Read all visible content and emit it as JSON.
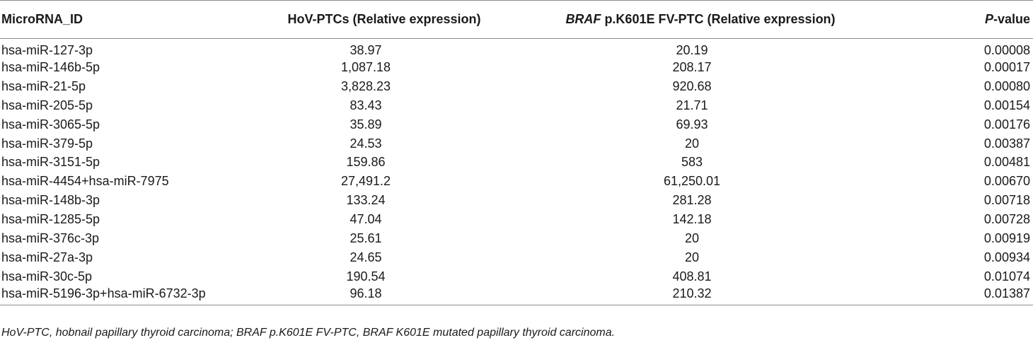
{
  "table": {
    "headers": {
      "id": "MicroRNA_ID",
      "hov": "HoV-PTCs (Relative expression)",
      "braf_gene": "BRAF",
      "braf_rest": " p.K601E FV-PTC (Relative expression)",
      "p_italic": "P",
      "p_rest": "-value"
    },
    "rows": [
      {
        "id": "hsa-miR-127-3p",
        "hov": "38.97",
        "braf": "20.19",
        "p": "0.00008"
      },
      {
        "id": "hsa-miR-146b-5p",
        "hov": "1,087.18",
        "braf": "208.17",
        "p": "0.00017"
      },
      {
        "id": "hsa-miR-21-5p",
        "hov": "3,828.23",
        "braf": "920.68",
        "p": "0.00080"
      },
      {
        "id": "hsa-miR-205-5p",
        "hov": "83.43",
        "braf": "21.71",
        "p": "0.00154"
      },
      {
        "id": "hsa-miR-3065-5p",
        "hov": "35.89",
        "braf": "69.93",
        "p": "0.00176"
      },
      {
        "id": "hsa-miR-379-5p",
        "hov": "24.53",
        "braf": "20",
        "p": "0.00387"
      },
      {
        "id": "hsa-miR-3151-5p",
        "hov": "159.86",
        "braf": "583",
        "p": "0.00481"
      },
      {
        "id": "hsa-miR-4454+hsa-miR-7975",
        "hov": "27,491.2",
        "braf": "61,250.01",
        "p": "0.00670"
      },
      {
        "id": "hsa-miR-148b-3p",
        "hov": "133.24",
        "braf": "281.28",
        "p": "0.00718"
      },
      {
        "id": "hsa-miR-1285-5p",
        "hov": "47.04",
        "braf": "142.18",
        "p": "0.00728"
      },
      {
        "id": "hsa-miR-376c-3p",
        "hov": "25.61",
        "braf": "20",
        "p": "0.00919"
      },
      {
        "id": "hsa-miR-27a-3p",
        "hov": "24.65",
        "braf": "20",
        "p": "0.00934"
      },
      {
        "id": "hsa-miR-30c-5p",
        "hov": "190.54",
        "braf": "408.81",
        "p": "0.01074"
      },
      {
        "id": "hsa-miR-5196-3p+hsa-miR-6732-3p",
        "hov": "96.18",
        "braf": "210.32",
        "p": "0.01387"
      }
    ]
  },
  "footnote": "HoV-PTC, hobnail papillary thyroid carcinoma; BRAF p.K601E FV-PTC, BRAF K601E mutated papillary thyroid carcinoma."
}
